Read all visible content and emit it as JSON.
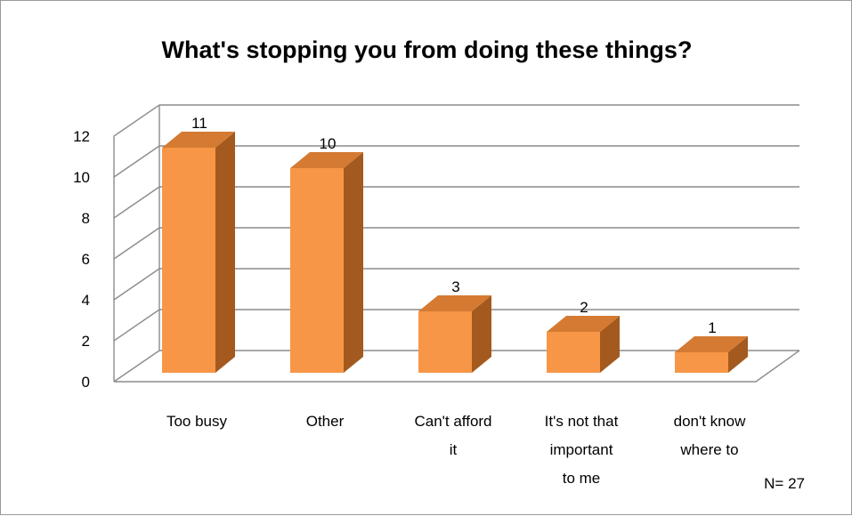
{
  "chart_data": {
    "type": "bar",
    "title": "What's stopping you from doing these things?",
    "categories": [
      [
        "Too busy"
      ],
      [
        "Other"
      ],
      [
        "Can't afford",
        "it"
      ],
      [
        "It's not that",
        "important",
        "to me"
      ],
      [
        "don't know",
        "where to"
      ]
    ],
    "values": [
      11,
      10,
      3,
      2,
      1
    ],
    "ylim": [
      0,
      12
    ],
    "yticks": [
      0,
      2,
      4,
      6,
      8,
      10,
      12
    ],
    "grid": true,
    "legend": "none",
    "colors": {
      "bar_front": "#F79646",
      "bar_side": "#A45A1E",
      "bar_top": "#D47A32",
      "grid": "#8c8c8c"
    }
  },
  "note": "N= 27"
}
